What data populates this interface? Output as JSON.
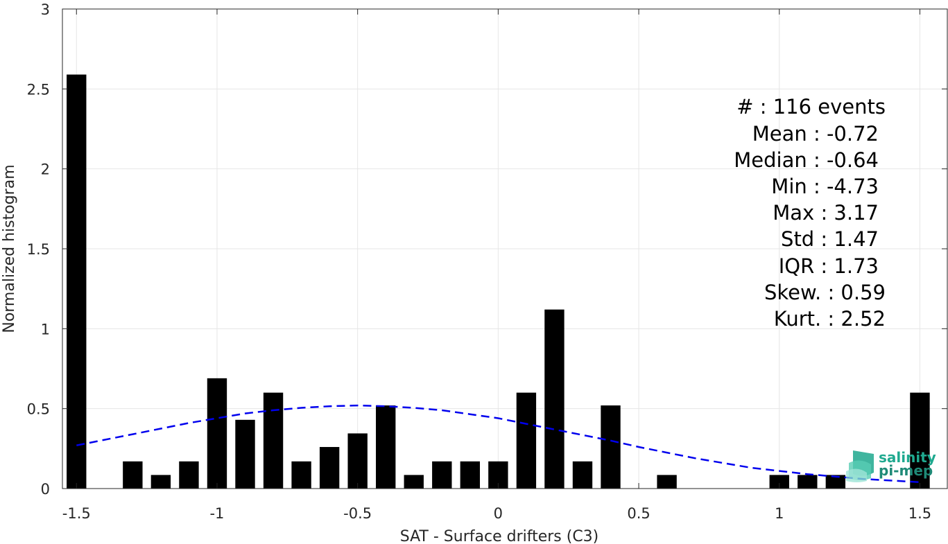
{
  "chart_data": {
    "type": "bar",
    "xlabel": "SAT - Surface drifters (C3)",
    "ylabel": "Normalized histogram",
    "xlim": [
      -1.55,
      1.6
    ],
    "ylim": [
      0,
      3
    ],
    "xticks": [
      -1.5,
      -1,
      -0.5,
      0,
      0.5,
      1,
      1.5
    ],
    "xtick_labels": [
      "-1.5",
      "-1",
      "-0.5",
      "0",
      "0.5",
      "1",
      "1.5"
    ],
    "yticks": [
      0,
      0.5,
      1,
      1.5,
      2,
      2.5,
      3
    ],
    "ytick_labels": [
      "0",
      "0.5",
      "1",
      "1.5",
      "2",
      "2.5",
      "3"
    ],
    "grid": true,
    "bar_width": 0.07,
    "bars": {
      "x": [
        -1.5,
        -1.3,
        -1.2,
        -1.1,
        -1.0,
        -0.9,
        -0.8,
        -0.7,
        -0.6,
        -0.5,
        -0.4,
        -0.3,
        -0.2,
        -0.1,
        0.0,
        0.1,
        0.2,
        0.3,
        0.4,
        0.6,
        1.0,
        1.1,
        1.2,
        1.5
      ],
      "values": [
        2.59,
        0.17,
        0.085,
        0.17,
        0.69,
        0.43,
        0.6,
        0.17,
        0.26,
        0.345,
        0.52,
        0.085,
        0.17,
        0.17,
        0.17,
        0.6,
        1.12,
        0.17,
        0.52,
        0.085,
        0.085,
        0.085,
        0.085,
        0.6
      ]
    },
    "fit_curve": {
      "style": "dashed",
      "color": "#0000ee",
      "x": [
        -1.5,
        -1.4,
        -1.3,
        -1.2,
        -1.1,
        -1.0,
        -0.9,
        -0.8,
        -0.7,
        -0.6,
        -0.5,
        -0.4,
        -0.3,
        -0.2,
        -0.1,
        0.0,
        0.1,
        0.2,
        0.3,
        0.4,
        0.5,
        0.6,
        0.7,
        0.8,
        0.9,
        1.0,
        1.1,
        1.2,
        1.3,
        1.4,
        1.5
      ],
      "y": [
        0.27,
        0.305,
        0.34,
        0.375,
        0.41,
        0.44,
        0.47,
        0.49,
        0.505,
        0.515,
        0.52,
        0.515,
        0.505,
        0.49,
        0.465,
        0.44,
        0.405,
        0.37,
        0.335,
        0.3,
        0.26,
        0.225,
        0.19,
        0.16,
        0.13,
        0.11,
        0.09,
        0.075,
        0.06,
        0.05,
        0.04
      ]
    },
    "annotations": [
      "#  : 116 events",
      "Mean : -0.72",
      "Median : -0.64",
      "Min : -4.73",
      "Max : 3.17",
      "Std : 1.47",
      "IQR : 1.73",
      "Skew. : 0.59",
      "Kurt. : 2.52"
    ]
  },
  "logo": {
    "line1": "salinity",
    "line2": "pi-mep"
  },
  "colors": {
    "bar": "#000000",
    "grid": "#e6e6e6",
    "axis": "#262626",
    "logo": "#1fa98f"
  }
}
